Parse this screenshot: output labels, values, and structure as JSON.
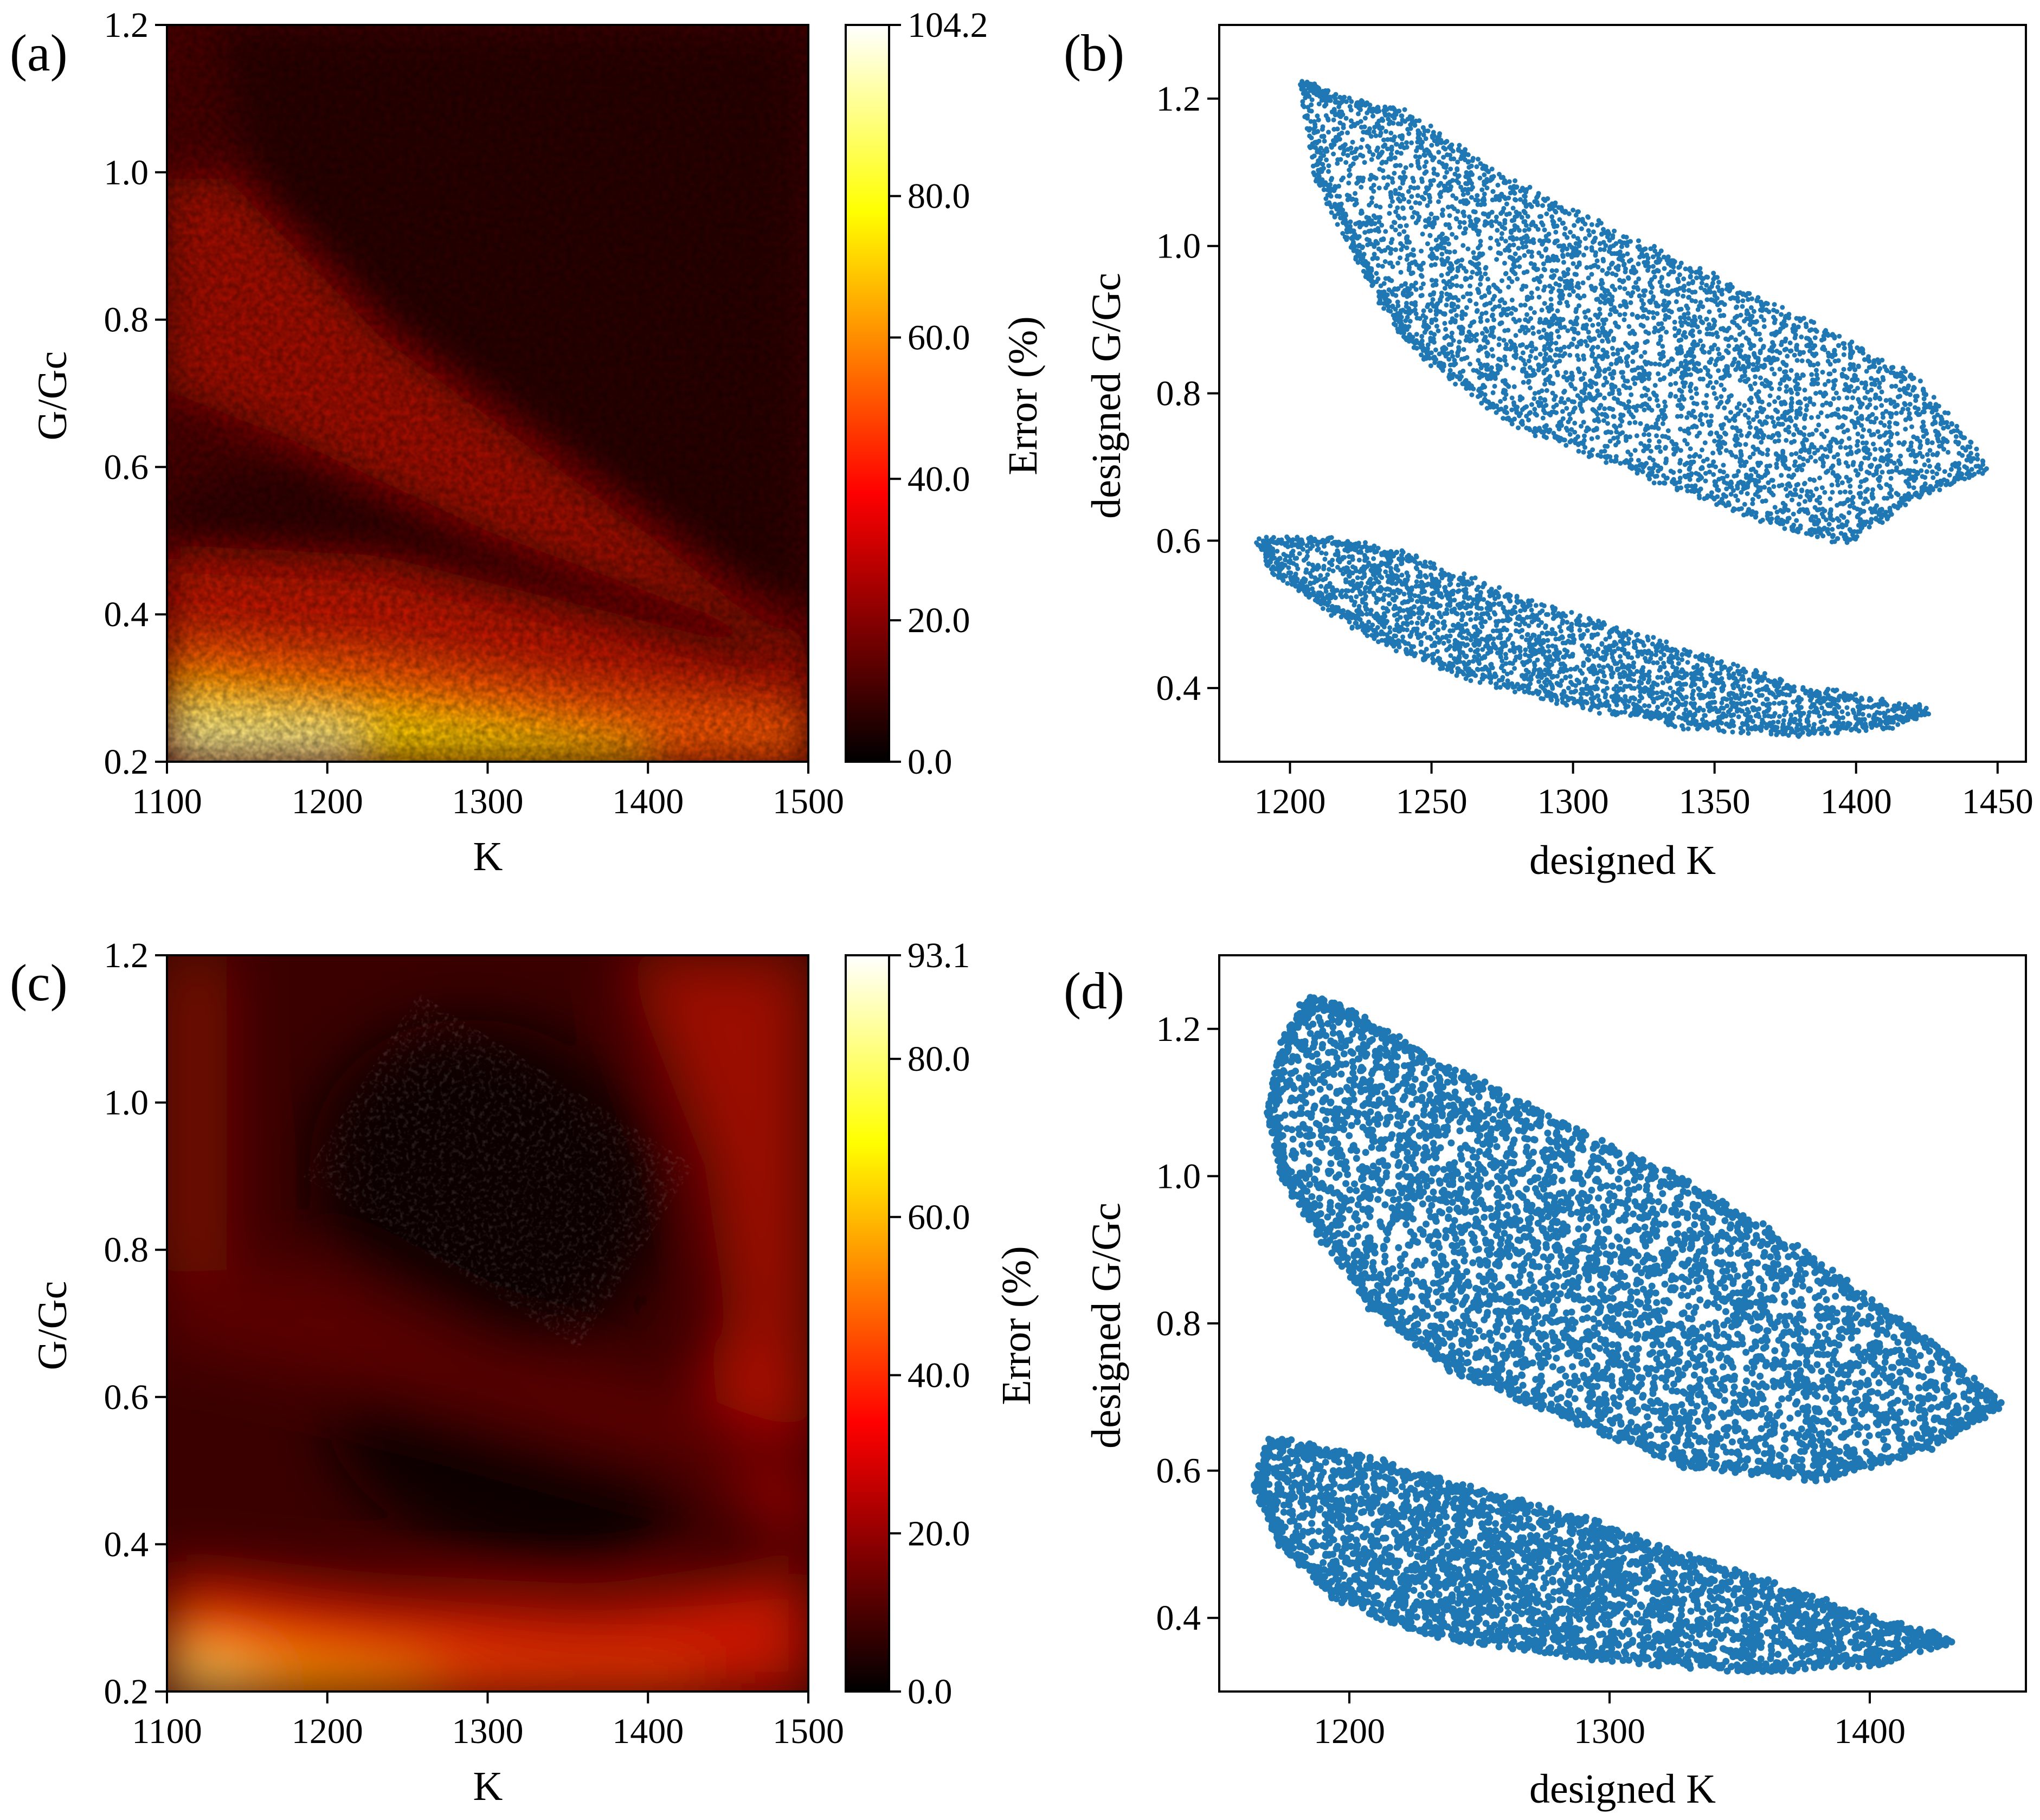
{
  "figure": {
    "panel_labels": [
      "(a)",
      "(b)",
      "(c)",
      "(d)"
    ]
  },
  "chart_data": [
    {
      "id": "a",
      "type": "heatmap",
      "title": "",
      "xlabel": "K",
      "ylabel": "G/Gc",
      "xlim": [
        1100,
        1500
      ],
      "ylim": [
        0.2,
        1.2
      ],
      "xticks": [
        1100,
        1200,
        1300,
        1400,
        1500
      ],
      "yticks": [
        0.2,
        0.4,
        0.6,
        0.8,
        1.0,
        1.2
      ],
      "colorbar": {
        "label": "Error (%)",
        "min": 0.0,
        "max": 104.2,
        "ticks": [
          0.0,
          20.0,
          40.0,
          60.0,
          80.0,
          104.2
        ],
        "colormap": "hot"
      },
      "description_of_field": {
        "bright_band_bottom": "error ~90-104% near G/Gc 0.2-0.3",
        "dark_upper_right": "error ~5-15% for G/Gc > 0.7, K > 1200",
        "red_diagonal_band": "error ~30-40% from (1100,0.95) to (1500,0.35)",
        "dark_middle_band": "error ~10-20% from (1100,0.6) to (1480,0.33)"
      }
    },
    {
      "id": "b",
      "type": "scatter",
      "xlabel": "designed K",
      "ylabel": "designed G/Gc",
      "xlim": [
        1175,
        1460
      ],
      "ylim": [
        0.3,
        1.3
      ],
      "xticks": [
        1200,
        1250,
        1300,
        1350,
        1400,
        1450
      ],
      "yticks": [
        0.4,
        0.6,
        0.8,
        1.0,
        1.2
      ],
      "color": "#1f77b4",
      "clusters": [
        {
          "name": "upper",
          "points_approx": 9000,
          "extent_K": [
            1205,
            1448
          ],
          "extent_GGc": [
            0.58,
            1.23
          ],
          "outline": [
            [
              1205,
              1.22
            ],
            [
              1215,
              1.2
            ],
            [
              1240,
              1.18
            ],
            [
              1280,
              1.08
            ],
            [
              1330,
              0.99
            ],
            [
              1380,
              0.9
            ],
            [
              1420,
              0.82
            ],
            [
              1445,
              0.7
            ],
            [
              1420,
              0.66
            ],
            [
              1395,
              0.6
            ],
            [
              1360,
              0.64
            ],
            [
              1320,
              0.7
            ],
            [
              1280,
              0.76
            ],
            [
              1255,
              0.83
            ],
            [
              1240,
              0.88
            ],
            [
              1230,
              0.95
            ],
            [
              1220,
              1.02
            ],
            [
              1210,
              1.1
            ]
          ]
        },
        {
          "name": "lower",
          "points_approx": 5000,
          "extent_K": [
            1190,
            1428
          ],
          "extent_GGc": [
            0.33,
            0.61
          ],
          "outline": [
            [
              1190,
              0.6
            ],
            [
              1215,
              0.6
            ],
            [
              1240,
              0.58
            ],
            [
              1280,
              0.52
            ],
            [
              1330,
              0.46
            ],
            [
              1380,
              0.4
            ],
            [
              1425,
              0.37
            ],
            [
              1410,
              0.35
            ],
            [
              1380,
              0.34
            ],
            [
              1340,
              0.35
            ],
            [
              1300,
              0.38
            ],
            [
              1260,
              0.42
            ],
            [
              1230,
              0.47
            ],
            [
              1210,
              0.52
            ],
            [
              1195,
              0.56
            ]
          ]
        }
      ]
    },
    {
      "id": "c",
      "type": "heatmap",
      "title": "",
      "xlabel": "K",
      "ylabel": "G/Gc",
      "xlim": [
        1100,
        1500
      ],
      "ylim": [
        0.2,
        1.2
      ],
      "xticks": [
        1100,
        1200,
        1300,
        1400,
        1500
      ],
      "yticks": [
        0.2,
        0.4,
        0.6,
        0.8,
        1.0,
        1.2
      ],
      "colorbar": {
        "label": "Error (%)",
        "min": 0.0,
        "max": 93.1,
        "ticks": [
          0.0,
          20.0,
          40.0,
          60.0,
          80.0,
          93.1
        ],
        "colormap": "hot"
      },
      "description_of_field": {
        "bright_corner": "error ~80-93% near (1100, 0.2)",
        "dark_core_upper": "error ~0-5% around (1320, 0.85)",
        "dark_core_lower": "error ~0-5% around (1280, 0.45)",
        "red_edges": "error ~25-35% at top-right and far right"
      }
    },
    {
      "id": "d",
      "type": "scatter",
      "xlabel": "designed K",
      "ylabel": "designed G/Gc",
      "xlim": [
        1150,
        1460
      ],
      "ylim": [
        0.3,
        1.3
      ],
      "xticks": [
        1200,
        1300,
        1400
      ],
      "yticks": [
        0.4,
        0.6,
        0.8,
        1.0,
        1.2
      ],
      "color": "#1f77b4",
      "clusters": [
        {
          "name": "upper",
          "points_approx": 9000,
          "extent_K": [
            1168,
            1450
          ],
          "extent_GGc": [
            0.58,
            1.25
          ],
          "outline": [
            [
              1185,
              1.24
            ],
            [
              1200,
              1.22
            ],
            [
              1230,
              1.16
            ],
            [
              1280,
              1.07
            ],
            [
              1330,
              0.99
            ],
            [
              1380,
              0.88
            ],
            [
              1420,
              0.78
            ],
            [
              1450,
              0.69
            ],
            [
              1420,
              0.63
            ],
            [
              1380,
              0.59
            ],
            [
              1330,
              0.61
            ],
            [
              1280,
              0.68
            ],
            [
              1240,
              0.74
            ],
            [
              1210,
              0.82
            ],
            [
              1190,
              0.92
            ],
            [
              1175,
              1.0
            ],
            [
              1170,
              1.08
            ],
            [
              1175,
              1.18
            ]
          ]
        },
        {
          "name": "lower",
          "points_approx": 6000,
          "extent_K": [
            1165,
            1433
          ],
          "extent_GGc": [
            0.32,
            0.65
          ],
          "outline": [
            [
              1170,
              0.64
            ],
            [
              1200,
              0.62
            ],
            [
              1240,
              0.58
            ],
            [
              1290,
              0.53
            ],
            [
              1340,
              0.47
            ],
            [
              1390,
              0.41
            ],
            [
              1430,
              0.37
            ],
            [
              1400,
              0.34
            ],
            [
              1350,
              0.33
            ],
            [
              1290,
              0.35
            ],
            [
              1230,
              0.38
            ],
            [
              1195,
              0.43
            ],
            [
              1175,
              0.5
            ],
            [
              1165,
              0.58
            ]
          ]
        }
      ]
    }
  ]
}
